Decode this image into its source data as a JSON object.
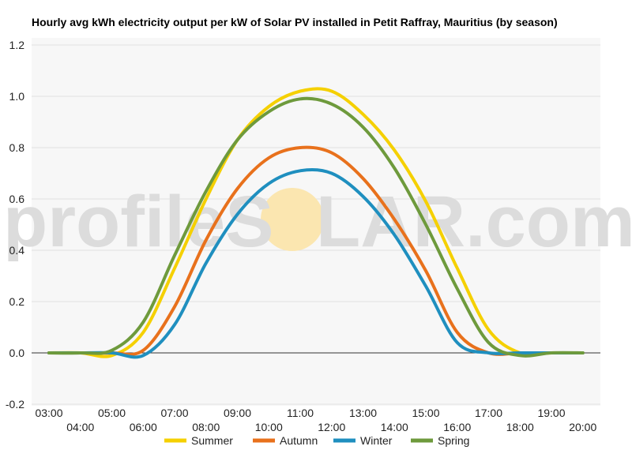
{
  "chart_data": {
    "type": "line",
    "title": "Hourly avg kWh electricity output per kW of Solar PV installed in Petit Raffray, Mauritius (by season)",
    "xlabel": "",
    "ylabel": "",
    "ylim": [
      -0.2,
      1.2
    ],
    "yticks": [
      "1.2",
      "1.0",
      "0.8",
      "0.6",
      "0.4",
      "0.2",
      "0.0",
      "-0.2"
    ],
    "x": [
      "03:00",
      "04:00",
      "05:00",
      "06:00",
      "07:00",
      "08:00",
      "09:00",
      "10:00",
      "11:00",
      "12:00",
      "13:00",
      "14:00",
      "15:00",
      "16:00",
      "17:00",
      "18:00",
      "19:00",
      "20:00"
    ],
    "grid": true,
    "legend_position": "bottom",
    "series": [
      {
        "name": "Summer",
        "color": "#f5d000",
        "values": [
          0.0,
          0.0,
          -0.01,
          0.08,
          0.33,
          0.6,
          0.83,
          0.96,
          1.02,
          1.02,
          0.93,
          0.79,
          0.59,
          0.33,
          0.09,
          0.0,
          0.0,
          0.0
        ]
      },
      {
        "name": "Autumn",
        "color": "#e8711c",
        "values": [
          0.0,
          0.0,
          0.0,
          0.01,
          0.18,
          0.44,
          0.64,
          0.76,
          0.8,
          0.78,
          0.68,
          0.52,
          0.32,
          0.08,
          0.0,
          0.0,
          0.0,
          0.0
        ]
      },
      {
        "name": "Winter",
        "color": "#1f8fbf",
        "values": [
          0.0,
          0.0,
          0.0,
          -0.01,
          0.11,
          0.35,
          0.54,
          0.66,
          0.71,
          0.7,
          0.61,
          0.46,
          0.26,
          0.04,
          0.0,
          0.0,
          0.0,
          0.0
        ]
      },
      {
        "name": "Spring",
        "color": "#6e9a3c",
        "values": [
          0.0,
          0.0,
          0.01,
          0.12,
          0.38,
          0.63,
          0.83,
          0.94,
          0.99,
          0.97,
          0.88,
          0.72,
          0.5,
          0.25,
          0.04,
          -0.01,
          0.0,
          0.0
        ]
      }
    ]
  },
  "watermark": {
    "text_left": "profileS",
    "text_right": "LAR.com",
    "sun_color": "#fbe6b0"
  }
}
